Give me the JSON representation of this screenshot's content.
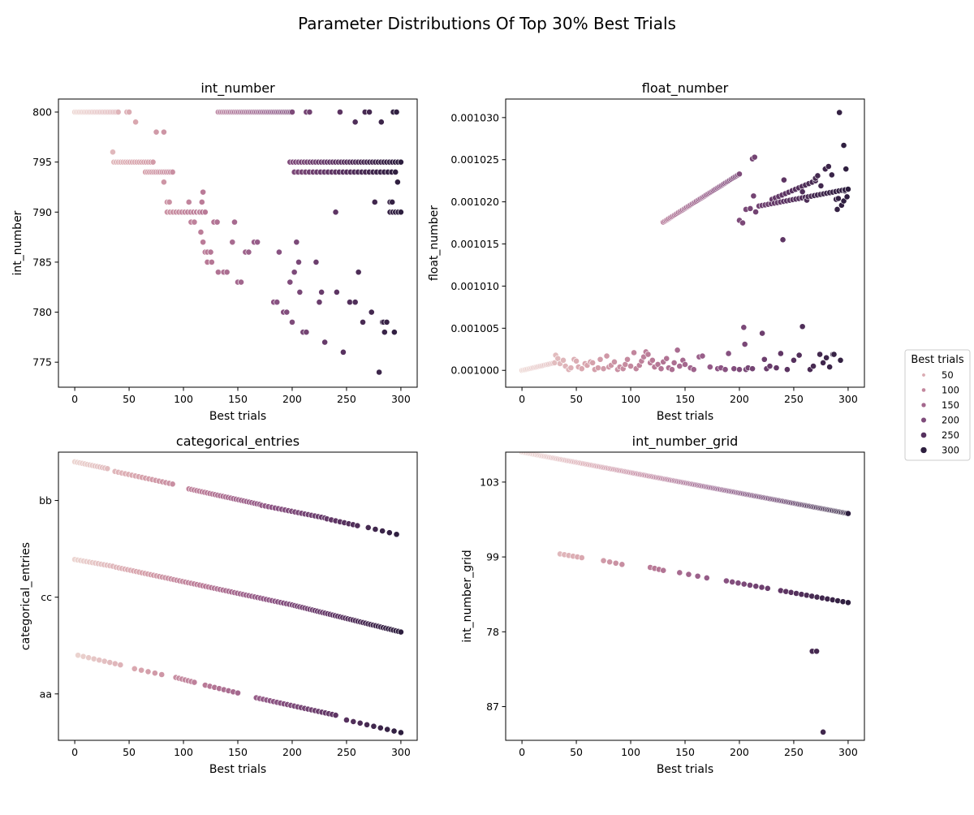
{
  "figure": {
    "title": "Parameter Distributions Of Top 30% Best Trials"
  },
  "legend": {
    "title": "Best trials",
    "placement": "right",
    "entries": [
      {
        "label": "50",
        "value": 50
      },
      {
        "label": "100",
        "value": 100
      },
      {
        "label": "150",
        "value": 150
      },
      {
        "label": "200",
        "value": 200
      },
      {
        "label": "250",
        "value": 250
      },
      {
        "label": "300",
        "value": 300
      }
    ],
    "colormap": [
      "#ecd5d1",
      "#d8a4ad",
      "#b97a97",
      "#8e5685",
      "#5e3564",
      "#2d1e3e"
    ],
    "color_range": [
      0,
      300
    ]
  },
  "chart_data": [
    {
      "id": "int_number",
      "type": "scatter",
      "title": "int_number",
      "xlabel": "Best trials",
      "ylabel": "int_number",
      "xlim": [
        -15,
        315
      ],
      "ylim": [
        772.5,
        801.3
      ],
      "xticks": [
        0,
        50,
        100,
        150,
        200,
        250,
        300
      ],
      "yticks": [
        775,
        780,
        785,
        790,
        795,
        800
      ],
      "yticklabels": [
        "775",
        "780",
        "785",
        "790",
        "795",
        "800"
      ],
      "segments": [
        {
          "x0": 0,
          "y0": 800,
          "x1": 40,
          "y1": 800,
          "n": 28
        },
        {
          "x0": 48,
          "y0": 800,
          "x1": 50,
          "y1": 800,
          "n": 2
        },
        {
          "x0": 132,
          "y0": 800,
          "x1": 200,
          "y1": 800,
          "n": 55
        },
        {
          "x0": 213,
          "y0": 800,
          "x1": 216,
          "y1": 800,
          "n": 2
        },
        {
          "x0": 36,
          "y0": 795,
          "x1": 72,
          "y1": 795,
          "n": 18
        },
        {
          "x0": 198,
          "y0": 795,
          "x1": 300,
          "y1": 795,
          "n": 40
        },
        {
          "x0": 65,
          "y0": 794,
          "x1": 90,
          "y1": 794,
          "n": 14
        },
        {
          "x0": 202,
          "y0": 794,
          "x1": 295,
          "y1": 794,
          "n": 28
        },
        {
          "x0": 85,
          "y0": 790,
          "x1": 120,
          "y1": 790,
          "n": 14
        },
        {
          "x0": 290,
          "y0": 790,
          "x1": 300,
          "y1": 790,
          "n": 5
        }
      ],
      "points": [
        [
          35,
          796
        ],
        [
          56,
          799
        ],
        [
          75,
          798
        ],
        [
          82,
          798
        ],
        [
          82,
          793
        ],
        [
          85,
          791
        ],
        [
          87,
          791
        ],
        [
          105,
          791
        ],
        [
          107,
          789
        ],
        [
          110,
          789
        ],
        [
          112,
          790
        ],
        [
          115,
          790
        ],
        [
          117,
          791
        ],
        [
          118,
          792
        ],
        [
          116,
          788
        ],
        [
          118,
          787
        ],
        [
          120,
          786
        ],
        [
          122,
          786
        ],
        [
          125,
          786
        ],
        [
          122,
          785
        ],
        [
          126,
          785
        ],
        [
          128,
          789
        ],
        [
          131,
          789
        ],
        [
          132,
          784
        ],
        [
          137,
          784
        ],
        [
          140,
          784
        ],
        [
          145,
          787
        ],
        [
          147,
          789
        ],
        [
          150,
          783
        ],
        [
          153,
          783
        ],
        [
          157,
          786
        ],
        [
          160,
          786
        ],
        [
          165,
          787
        ],
        [
          168,
          787
        ],
        [
          183,
          781
        ],
        [
          186,
          781
        ],
        [
          188,
          786
        ],
        [
          192,
          780
        ],
        [
          195,
          780
        ],
        [
          198,
          783
        ],
        [
          200,
          779
        ],
        [
          202,
          784
        ],
        [
          204,
          787
        ],
        [
          206,
          785
        ],
        [
          207,
          782
        ],
        [
          210,
          778
        ],
        [
          213,
          778
        ],
        [
          222,
          785
        ],
        [
          225,
          781
        ],
        [
          227,
          782
        ],
        [
          230,
          777
        ],
        [
          240,
          790
        ],
        [
          241,
          782
        ],
        [
          244,
          800
        ],
        [
          247,
          776
        ],
        [
          253,
          781
        ],
        [
          258,
          799
        ],
        [
          258,
          781
        ],
        [
          261,
          784
        ],
        [
          265,
          779
        ],
        [
          267,
          800
        ],
        [
          271,
          800
        ],
        [
          273,
          780
        ],
        [
          276,
          791
        ],
        [
          280,
          774
        ],
        [
          282,
          799
        ],
        [
          283,
          779
        ],
        [
          284,
          779
        ],
        [
          285,
          778
        ],
        [
          287,
          779
        ],
        [
          290,
          791
        ],
        [
          292,
          791
        ],
        [
          293,
          800
        ],
        [
          294,
          778
        ],
        [
          296,
          800
        ],
        [
          297,
          793
        ]
      ]
    },
    {
      "id": "float_number",
      "type": "scatter",
      "title": "float_number",
      "xlabel": "Best trials",
      "ylabel": "float_number",
      "xlim": [
        -15,
        315
      ],
      "ylim": [
        0.9998,
        1.00322
      ],
      "xticks": [
        0,
        50,
        100,
        150,
        200,
        250,
        300
      ],
      "yticks": [
        1.0,
        1.0005,
        1.001,
        1.0015,
        1.002,
        1.0025,
        1.003
      ],
      "yticklabels": [
        "0.001000",
        "0.001005",
        "0.001010",
        "0.001015",
        "0.001020",
        "0.001025",
        "0.001030"
      ],
      "segments": [
        {
          "x0": 0,
          "y0": 1.0,
          "x1": 30,
          "y1": 1.00009,
          "n": 24
        },
        {
          "x0": 130,
          "y0": 1.00176,
          "x1": 200,
          "y1": 1.00233,
          "n": 56
        },
        {
          "x0": 218,
          "y0": 1.00195,
          "x1": 300,
          "y1": 1.00215,
          "n": 30
        },
        {
          "x0": 230,
          "y0": 1.00203,
          "x1": 270,
          "y1": 1.00225,
          "n": 14
        }
      ],
      "points": [
        [
          31,
          1.00018
        ],
        [
          33,
          1.00014
        ],
        [
          35,
          1.00008
        ],
        [
          38,
          1.00012
        ],
        [
          40,
          1.00005
        ],
        [
          43,
          1.00001
        ],
        [
          45,
          1.00003
        ],
        [
          48,
          1.00013
        ],
        [
          50,
          1.00011
        ],
        [
          52,
          1.00004
        ],
        [
          55,
          1.00002
        ],
        [
          58,
          1.00008
        ],
        [
          60,
          1.00006
        ],
        [
          63,
          1.0001
        ],
        [
          65,
          1.00009
        ],
        [
          67,
          1.00001
        ],
        [
          70,
          1.00003
        ],
        [
          72,
          1.00013
        ],
        [
          75,
          1.00002
        ],
        [
          78,
          1.00017
        ],
        [
          80,
          1.00004
        ],
        [
          82,
          1.00006
        ],
        [
          85,
          1.0001
        ],
        [
          88,
          1.00001
        ],
        [
          90,
          1.00004
        ],
        [
          93,
          1.00002
        ],
        [
          95,
          1.00007
        ],
        [
          97,
          1.00013
        ],
        [
          100,
          1.00005
        ],
        [
          103,
          1.00021
        ],
        [
          105,
          1.00002
        ],
        [
          108,
          1.00006
        ],
        [
          110,
          1.00011
        ],
        [
          112,
          1.00016
        ],
        [
          114,
          1.00022
        ],
        [
          116,
          1.00019
        ],
        [
          118,
          1.00009
        ],
        [
          120,
          1.00012
        ],
        [
          122,
          1.00004
        ],
        [
          125,
          1.00007
        ],
        [
          128,
          1.00002
        ],
        [
          130,
          1.0001
        ],
        [
          133,
          1.00014
        ],
        [
          135,
          1.00003
        ],
        [
          138,
          1.00001
        ],
        [
          140,
          1.00009
        ],
        [
          143,
          1.00024
        ],
        [
          145,
          1.00005
        ],
        [
          148,
          1.00012
        ],
        [
          150,
          1.00007
        ],
        [
          155,
          1.00003
        ],
        [
          158,
          1.00001
        ],
        [
          163,
          1.00016
        ],
        [
          166,
          1.00017
        ],
        [
          173,
          1.00004
        ],
        [
          180,
          1.00002
        ],
        [
          183,
          1.00003
        ],
        [
          187,
          1.00001
        ],
        [
          190,
          1.0002
        ],
        [
          195,
          1.00002
        ],
        [
          200,
          1.00001
        ],
        [
          200,
          1.00178
        ],
        [
          203,
          1.00175
        ],
        [
          204,
          1.00051
        ],
        [
          205,
          1.00031
        ],
        [
          206,
          1.00001
        ],
        [
          206,
          1.00191
        ],
        [
          208,
          1.00003
        ],
        [
          210,
          1.00192
        ],
        [
          212,
          1.00002
        ],
        [
          212,
          1.00251
        ],
        [
          214,
          1.00253
        ],
        [
          213,
          1.00207
        ],
        [
          215,
          1.00188
        ],
        [
          221,
          1.00044
        ],
        [
          223,
          1.00013
        ],
        [
          225,
          1.00002
        ],
        [
          228,
          1.00005
        ],
        [
          234,
          1.00003
        ],
        [
          238,
          1.0002
        ],
        [
          240,
          1.00155
        ],
        [
          241,
          1.00226
        ],
        [
          244,
          1.00001
        ],
        [
          250,
          1.00012
        ],
        [
          255,
          1.00018
        ],
        [
          258,
          1.00052
        ],
        [
          258,
          1.00212
        ],
        [
          262,
          1.00202
        ],
        [
          265,
          1.00001
        ],
        [
          268,
          1.00005
        ],
        [
          270,
          1.00228
        ],
        [
          272,
          1.00231
        ],
        [
          274,
          1.00019
        ],
        [
          275,
          1.00219
        ],
        [
          277,
          1.00009
        ],
        [
          279,
          1.00239
        ],
        [
          280,
          1.00015
        ],
        [
          282,
          1.00242
        ],
        [
          283,
          1.00004
        ],
        [
          285,
          1.00232
        ],
        [
          286,
          1.00019
        ],
        [
          287,
          1.00019
        ],
        [
          289,
          1.00203
        ],
        [
          290,
          1.00191
        ],
        [
          291,
          1.00204
        ],
        [
          292,
          1.00306
        ],
        [
          293,
          1.00012
        ],
        [
          294,
          1.00196
        ],
        [
          296,
          1.00267
        ],
        [
          296,
          1.00201
        ],
        [
          297,
          1.00213
        ],
        [
          298,
          1.00239
        ],
        [
          299,
          1.00206
        ]
      ]
    },
    {
      "id": "categorical_entries",
      "type": "scatter",
      "title": "categorical_entries",
      "xlabel": "Best trials",
      "ylabel": "categorical_entries",
      "xlim": [
        -15,
        315
      ],
      "ylim": [
        -0.48,
        2.5
      ],
      "xticks": [
        0,
        50,
        100,
        150,
        200,
        250,
        300
      ],
      "yticks": [
        0,
        1,
        2
      ],
      "yticklabels": [
        "aa",
        "cc",
        "bb"
      ],
      "segments": [
        {
          "x0": 0,
          "y0": 2.4,
          "x1": 30,
          "y1": 2.33,
          "n": 14
        },
        {
          "x0": 37,
          "y0": 2.3,
          "x1": 90,
          "y1": 2.17,
          "n": 18
        },
        {
          "x0": 105,
          "y0": 2.12,
          "x1": 170,
          "y1": 1.96,
          "n": 28
        },
        {
          "x0": 172,
          "y0": 1.95,
          "x1": 230,
          "y1": 1.82,
          "n": 20
        },
        {
          "x0": 232,
          "y0": 1.81,
          "x1": 260,
          "y1": 1.74,
          "n": 8
        },
        {
          "x0": 270,
          "y0": 1.72,
          "x1": 296,
          "y1": 1.65,
          "n": 5
        },
        {
          "x0": 0,
          "y0": 1.39,
          "x1": 35,
          "y1": 1.32,
          "n": 14
        },
        {
          "x0": 38,
          "y0": 1.31,
          "x1": 200,
          "y1": 0.92,
          "n": 62
        },
        {
          "x0": 200,
          "y0": 0.92,
          "x1": 300,
          "y1": 0.64,
          "n": 44
        },
        {
          "x0": 3,
          "y0": 0.4,
          "x1": 42,
          "y1": 0.3,
          "n": 9
        },
        {
          "x0": 55,
          "y0": 0.26,
          "x1": 80,
          "y1": 0.2,
          "n": 5
        },
        {
          "x0": 93,
          "y0": 0.17,
          "x1": 110,
          "y1": 0.12,
          "n": 7
        },
        {
          "x0": 120,
          "y0": 0.09,
          "x1": 150,
          "y1": 0.01,
          "n": 8
        },
        {
          "x0": 167,
          "y0": -0.04,
          "x1": 240,
          "y1": -0.22,
          "n": 24
        },
        {
          "x0": 250,
          "y0": -0.27,
          "x1": 300,
          "y1": -0.4,
          "n": 9
        }
      ],
      "points": []
    },
    {
      "id": "int_number_grid",
      "type": "scatter",
      "title": "int_number_grid",
      "xlabel": "Best trials",
      "ylabel": "int_number_grid",
      "xlim": [
        -15,
        315
      ],
      "ylim": [
        -0.45,
        3.4
      ],
      "xticks": [
        0,
        50,
        100,
        150,
        200,
        250,
        300
      ],
      "yticks": [
        0,
        1,
        2,
        3
      ],
      "yticklabels": [
        "87",
        "78",
        "99",
        "103"
      ],
      "segments": [
        {
          "x0": 0,
          "y0": 3.4,
          "x1": 300,
          "y1": 2.58,
          "n": 260
        },
        {
          "x0": 35,
          "y0": 2.04,
          "x1": 55,
          "y1": 1.99,
          "n": 6
        },
        {
          "x0": 75,
          "y0": 1.95,
          "x1": 92,
          "y1": 1.9,
          "n": 4
        },
        {
          "x0": 118,
          "y0": 1.86,
          "x1": 130,
          "y1": 1.82,
          "n": 4
        },
        {
          "x0": 145,
          "y0": 1.79,
          "x1": 170,
          "y1": 1.72,
          "n": 4
        },
        {
          "x0": 188,
          "y0": 1.68,
          "x1": 226,
          "y1": 1.58,
          "n": 8
        },
        {
          "x0": 238,
          "y0": 1.55,
          "x1": 300,
          "y1": 1.39,
          "n": 14
        }
      ],
      "points": [
        [
          267,
          0.74
        ],
        [
          271,
          0.74
        ],
        [
          277,
          -0.34
        ]
      ]
    }
  ]
}
